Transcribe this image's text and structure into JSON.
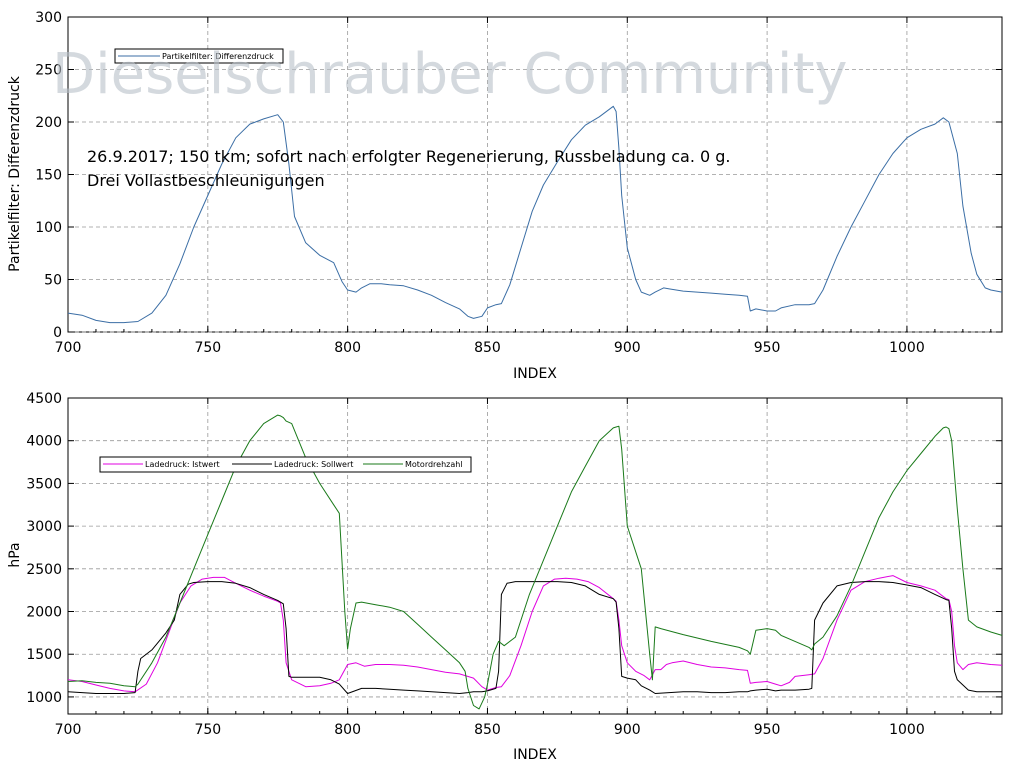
{
  "watermark": "Dieselschrauber Community",
  "chart_data": [
    {
      "type": "line",
      "xlabel": "INDEX",
      "ylabel": "Partikelfilter: Differenzdruck",
      "xlim": [
        700,
        1034
      ],
      "ylim": [
        0,
        300
      ],
      "xticks": [
        700,
        750,
        800,
        850,
        900,
        950,
        1000
      ],
      "yticks": [
        0,
        50,
        100,
        150,
        200,
        250,
        300
      ],
      "grid": true,
      "legend_position": "top-left",
      "annotation_lines": [
        "26.9.2017; 150 tkm; sofort nach erfolgter Regenerierung, Russbeladung ca. 0 g.",
        "Drei Vollastbeschleunigungen"
      ],
      "series": [
        {
          "name": "Partikelfilter: Differenzdruck",
          "color": "#3b6ea5",
          "x": [
            700,
            705,
            710,
            715,
            720,
            725,
            730,
            735,
            740,
            745,
            750,
            755,
            760,
            765,
            770,
            775,
            777,
            779,
            781,
            785,
            790,
            795,
            798,
            800,
            803,
            805,
            808,
            812,
            815,
            820,
            825,
            830,
            835,
            840,
            843,
            845,
            848,
            850,
            853,
            855,
            858,
            862,
            866,
            870,
            875,
            880,
            885,
            890,
            895,
            896,
            897,
            898,
            900,
            903,
            905,
            908,
            910,
            913,
            915,
            920,
            925,
            930,
            935,
            940,
            943,
            944,
            946,
            950,
            953,
            955,
            960,
            965,
            967,
            970,
            975,
            980,
            985,
            990,
            995,
            1000,
            1005,
            1010,
            1013,
            1015,
            1018,
            1020,
            1023,
            1025,
            1028,
            1030,
            1034
          ],
          "y": [
            18,
            16,
            11,
            9,
            9,
            10,
            18,
            35,
            65,
            100,
            130,
            160,
            185,
            198,
            203,
            207,
            200,
            160,
            110,
            85,
            73,
            66,
            48,
            40,
            38,
            42,
            46,
            46,
            45,
            44,
            40,
            35,
            28,
            22,
            15,
            13,
            15,
            23,
            26,
            27,
            45,
            80,
            115,
            140,
            162,
            183,
            197,
            205,
            215,
            210,
            175,
            130,
            80,
            50,
            38,
            35,
            38,
            42,
            41,
            39,
            38,
            37,
            36,
            35,
            34,
            20,
            22,
            20,
            20,
            23,
            26,
            26,
            27,
            40,
            72,
            100,
            125,
            150,
            170,
            185,
            193,
            198,
            204,
            200,
            170,
            120,
            75,
            55,
            42,
            40,
            38
          ]
        }
      ]
    },
    {
      "type": "line",
      "xlabel": "INDEX",
      "ylabel": "hPa",
      "xlim": [
        700,
        1034
      ],
      "ylim": [
        800,
        4500
      ],
      "xticks": [
        700,
        750,
        800,
        850,
        900,
        950,
        1000
      ],
      "yticks": [
        1000,
        1500,
        2000,
        2500,
        3000,
        3500,
        4000,
        4500
      ],
      "grid": true,
      "legend_position": "top-left",
      "series": [
        {
          "name": "Ladedruck: Istwert",
          "color": "#e000e0",
          "x": [
            700,
            705,
            710,
            715,
            720,
            724,
            728,
            732,
            736,
            740,
            744,
            748,
            752,
            756,
            760,
            765,
            770,
            775,
            776,
            777,
            778,
            780,
            785,
            790,
            794,
            797,
            800,
            803,
            806,
            810,
            815,
            820,
            825,
            830,
            835,
            840,
            845,
            848,
            850,
            853,
            855,
            858,
            862,
            866,
            870,
            874,
            878,
            882,
            886,
            890,
            895,
            896,
            897,
            898,
            900,
            903,
            906,
            908,
            910,
            912,
            914,
            916,
            920,
            925,
            930,
            935,
            940,
            943,
            944,
            946,
            950,
            953,
            955,
            958,
            960,
            965,
            967,
            970,
            975,
            980,
            985,
            990,
            995,
            1000,
            1005,
            1010,
            1014,
            1015,
            1016,
            1017,
            1018,
            1020,
            1022,
            1025,
            1030,
            1034
          ],
          "y": [
            1200,
            1180,
            1140,
            1100,
            1070,
            1060,
            1150,
            1400,
            1750,
            2100,
            2300,
            2380,
            2400,
            2400,
            2330,
            2250,
            2180,
            2120,
            2100,
            1900,
            1400,
            1200,
            1120,
            1130,
            1160,
            1200,
            1380,
            1400,
            1360,
            1380,
            1380,
            1370,
            1350,
            1320,
            1290,
            1270,
            1220,
            1120,
            1080,
            1110,
            1120,
            1250,
            1600,
            2000,
            2300,
            2380,
            2390,
            2380,
            2350,
            2280,
            2150,
            2120,
            1900,
            1600,
            1400,
            1300,
            1250,
            1200,
            1320,
            1320,
            1380,
            1400,
            1420,
            1380,
            1350,
            1340,
            1320,
            1310,
            1160,
            1170,
            1180,
            1150,
            1130,
            1170,
            1240,
            1260,
            1270,
            1450,
            1900,
            2250,
            2350,
            2390,
            2420,
            2340,
            2300,
            2250,
            2150,
            2140,
            2000,
            1600,
            1400,
            1320,
            1380,
            1400,
            1380,
            1370
          ]
        },
        {
          "name": "Ladedruck: Sollwert",
          "color": "#000000",
          "x": [
            700,
            705,
            710,
            715,
            720,
            724,
            725,
            726,
            730,
            735,
            738,
            740,
            743,
            745,
            750,
            755,
            760,
            765,
            770,
            775,
            777,
            778,
            779,
            780,
            785,
            790,
            794,
            797,
            800,
            805,
            810,
            815,
            820,
            825,
            830,
            835,
            840,
            843,
            845,
            848,
            850,
            853,
            854,
            855,
            857,
            860,
            865,
            870,
            875,
            880,
            885,
            890,
            895,
            896,
            897,
            898,
            900,
            903,
            905,
            908,
            910,
            915,
            920,
            925,
            930,
            935,
            940,
            943,
            944,
            946,
            950,
            953,
            955,
            960,
            965,
            966,
            967,
            970,
            975,
            980,
            985,
            990,
            995,
            1000,
            1005,
            1010,
            1014,
            1015,
            1016,
            1017,
            1018,
            1020,
            1022,
            1025,
            1030,
            1034
          ],
          "y": [
            1060,
            1050,
            1040,
            1040,
            1040,
            1050,
            1300,
            1450,
            1550,
            1750,
            1900,
            2200,
            2320,
            2340,
            2350,
            2350,
            2330,
            2280,
            2200,
            2130,
            2090,
            1800,
            1240,
            1230,
            1230,
            1230,
            1200,
            1150,
            1040,
            1100,
            1100,
            1090,
            1080,
            1070,
            1060,
            1050,
            1040,
            1050,
            1060,
            1060,
            1070,
            1100,
            1300,
            2200,
            2330,
            2350,
            2350,
            2350,
            2350,
            2340,
            2300,
            2200,
            2150,
            2110,
            1800,
            1240,
            1220,
            1200,
            1130,
            1080,
            1040,
            1050,
            1060,
            1060,
            1050,
            1050,
            1060,
            1060,
            1070,
            1080,
            1090,
            1070,
            1080,
            1080,
            1090,
            1100,
            1900,
            2100,
            2300,
            2340,
            2350,
            2350,
            2340,
            2310,
            2280,
            2200,
            2140,
            2130,
            1800,
            1300,
            1200,
            1140,
            1080,
            1060,
            1060,
            1060
          ]
        },
        {
          "name": "Motordrehzahl",
          "color": "#1a7a1a",
          "x": [
            700,
            705,
            710,
            715,
            720,
            724,
            725,
            730,
            735,
            740,
            745,
            750,
            755,
            760,
            765,
            770,
            775,
            776,
            777,
            778,
            780,
            785,
            790,
            795,
            797,
            799,
            800,
            801,
            803,
            805,
            810,
            815,
            820,
            825,
            830,
            835,
            840,
            842,
            843,
            845,
            847,
            849,
            850,
            852,
            854,
            856,
            860,
            865,
            870,
            875,
            880,
            885,
            890,
            895,
            896,
            897,
            898,
            900,
            905,
            908,
            909,
            910,
            912,
            920,
            930,
            940,
            943,
            944,
            946,
            950,
            953,
            955,
            960,
            965,
            966,
            967,
            970,
            975,
            980,
            985,
            990,
            995,
            1000,
            1005,
            1010,
            1013,
            1014,
            1015,
            1016,
            1018,
            1020,
            1022,
            1025,
            1030,
            1034
          ],
          "y": [
            1180,
            1190,
            1170,
            1160,
            1130,
            1120,
            1150,
            1400,
            1700,
            2100,
            2500,
            2900,
            3300,
            3700,
            4000,
            4200,
            4300,
            4290,
            4270,
            4230,
            4200,
            3800,
            3500,
            3250,
            3150,
            2000,
            1560,
            1800,
            2100,
            2110,
            2080,
            2050,
            2000,
            1850,
            1700,
            1550,
            1400,
            1300,
            1100,
            900,
            860,
            1000,
            1150,
            1500,
            1650,
            1600,
            1700,
            2200,
            2600,
            3000,
            3400,
            3700,
            4000,
            4150,
            4160,
            4170,
            3900,
            3000,
            2500,
            1500,
            1200,
            1820,
            1800,
            1730,
            1650,
            1580,
            1540,
            1500,
            1780,
            1800,
            1780,
            1720,
            1650,
            1580,
            1550,
            1620,
            1700,
            1950,
            2300,
            2700,
            3100,
            3400,
            3650,
            3850,
            4050,
            4150,
            4160,
            4140,
            4000,
            3200,
            2500,
            1900,
            1820,
            1760,
            1720
          ]
        }
      ]
    }
  ]
}
